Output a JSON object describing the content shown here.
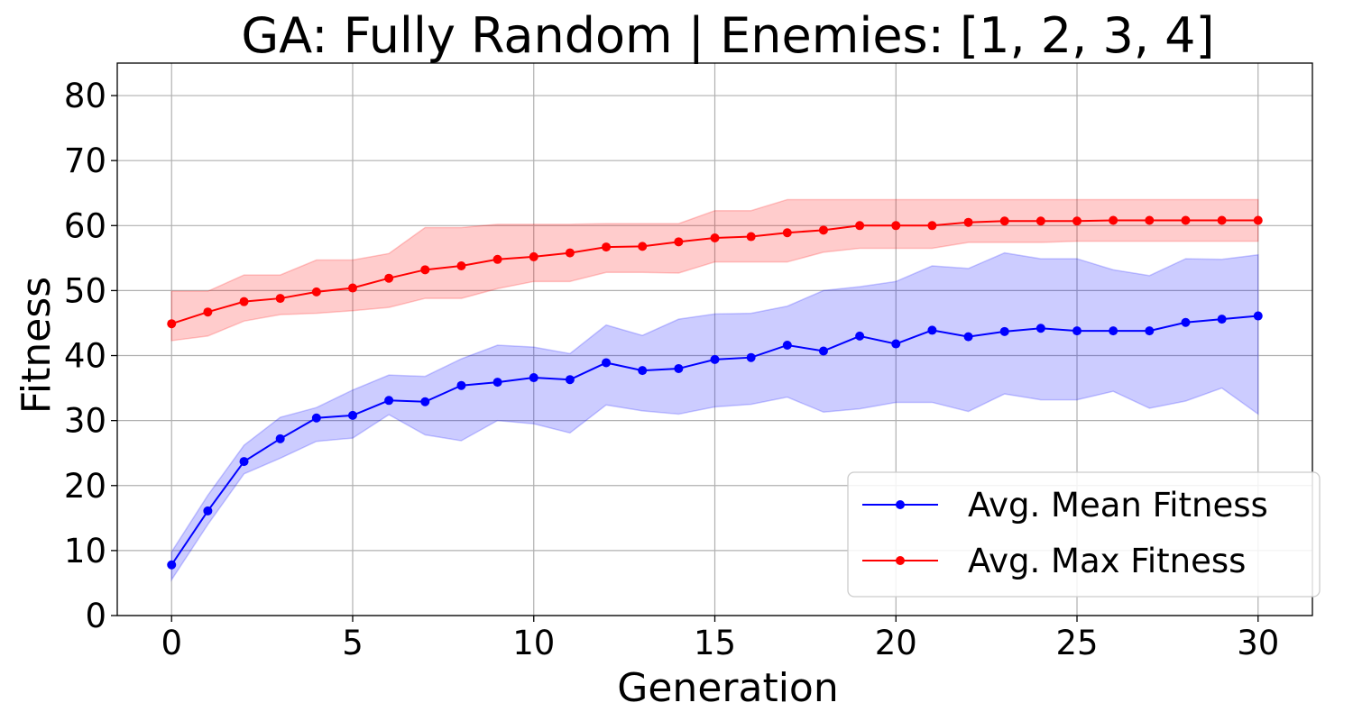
{
  "chart_data": {
    "type": "line",
    "title": "GA: Fully Random | Enemies: [1, 2, 3, 4]",
    "xlabel": "Generation",
    "ylabel": "Fitness",
    "xlim": [
      -1.5,
      31.5
    ],
    "ylim": [
      0,
      85
    ],
    "xticks": [
      0,
      5,
      10,
      15,
      20,
      25,
      30
    ],
    "yticks": [
      0,
      10,
      20,
      30,
      40,
      50,
      60,
      70,
      80
    ],
    "grid": true,
    "legend_position": "lower-right",
    "x": [
      0,
      1,
      2,
      3,
      4,
      5,
      6,
      7,
      8,
      9,
      10,
      11,
      12,
      13,
      14,
      15,
      16,
      17,
      18,
      19,
      20,
      21,
      22,
      23,
      24,
      25,
      26,
      27,
      28,
      29,
      30
    ],
    "series": [
      {
        "name": "Avg. Mean Fitness",
        "color": "#0000ff",
        "band_color": "#0000ff",
        "values": [
          7.8,
          16.1,
          23.7,
          27.2,
          30.4,
          30.8,
          33.1,
          32.9,
          35.4,
          35.9,
          36.6,
          36.3,
          38.9,
          37.7,
          38.0,
          39.4,
          39.7,
          41.6,
          40.7,
          43.0,
          41.8,
          43.9,
          42.9,
          43.7,
          44.2,
          43.8,
          43.8,
          43.8,
          45.1,
          45.6,
          46.1
        ],
        "lower": [
          5.5,
          14.0,
          21.8,
          24.2,
          26.8,
          27.3,
          30.9,
          27.8,
          26.9,
          30.0,
          29.5,
          28.1,
          32.4,
          31.5,
          31.0,
          32.1,
          32.5,
          33.6,
          31.3,
          31.8,
          32.8,
          32.8,
          31.4,
          34.1,
          33.2,
          33.2,
          34.5,
          31.9,
          33.0,
          35.0,
          31.0
        ],
        "upper": [
          9.8,
          18.5,
          26.2,
          30.5,
          32.0,
          34.7,
          37.0,
          36.8,
          39.5,
          41.6,
          41.3,
          40.3,
          44.7,
          43.1,
          45.6,
          46.4,
          46.5,
          47.6,
          50.0,
          50.6,
          51.4,
          53.8,
          53.4,
          55.8,
          54.9,
          54.9,
          53.2,
          52.3,
          54.9,
          54.8,
          55.5
        ]
      },
      {
        "name": "Avg. Max Fitness",
        "color": "#ff0000",
        "band_color": "#ff0000",
        "values": [
          44.9,
          46.7,
          48.3,
          48.8,
          49.8,
          50.4,
          51.9,
          53.2,
          53.8,
          54.8,
          55.2,
          55.8,
          56.7,
          56.8,
          57.5,
          58.1,
          58.3,
          58.9,
          59.3,
          60.0,
          60.0,
          60.0,
          60.5,
          60.7,
          60.7,
          60.7,
          60.8,
          60.8,
          60.8,
          60.8,
          60.8
        ],
        "lower": [
          42.3,
          43.0,
          45.3,
          46.3,
          46.5,
          46.9,
          47.4,
          48.8,
          48.8,
          50.3,
          51.4,
          51.4,
          52.8,
          52.8,
          52.7,
          54.4,
          54.4,
          54.4,
          55.9,
          56.5,
          56.5,
          56.5,
          57.4,
          57.4,
          57.4,
          57.6,
          57.6,
          57.6,
          57.6,
          57.6,
          57.6
        ],
        "upper": [
          49.9,
          49.9,
          52.4,
          52.4,
          54.7,
          54.7,
          55.7,
          59.7,
          59.7,
          60.2,
          60.2,
          60.2,
          60.3,
          60.3,
          60.3,
          62.3,
          62.3,
          64.0,
          64.0,
          64.0,
          64.0,
          64.0,
          64.0,
          64.0,
          64.0,
          64.0,
          64.0,
          64.0,
          64.0,
          64.0,
          64.0
        ]
      }
    ]
  }
}
